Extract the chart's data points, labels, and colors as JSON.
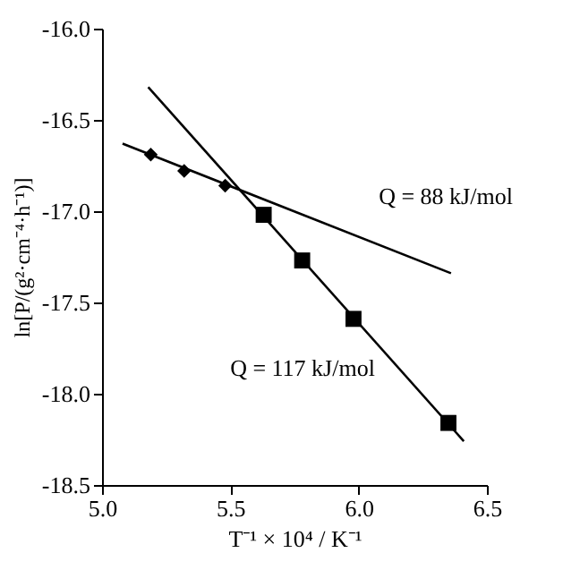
{
  "chart_data": {
    "type": "scatter",
    "xlabel": "T⁻¹ × 10⁴ / K⁻¹",
    "ylabel": "ln[P/(g²·cm⁻⁴·h⁻¹)]",
    "xlim": [
      5.0,
      6.5
    ],
    "ylim": [
      -18.5,
      -16.0
    ],
    "xticks": [
      {
        "value": 5.0,
        "label": "5.0"
      },
      5.5,
      {
        "value": 6.0,
        "label": "6.0"
      },
      6.5
    ],
    "yticks": [
      {
        "value": -18.5,
        "label": "-18.5"
      },
      {
        "value": -18.0,
        "label": "-18.0"
      },
      {
        "value": -17.5,
        "label": "-17.5"
      },
      {
        "value": -17.0,
        "label": "-17.0"
      },
      {
        "value": -16.5,
        "label": "-16.5"
      },
      {
        "value": -16.0,
        "label": "-16.0"
      }
    ],
    "series": [
      {
        "marker": "diamond",
        "color": "#000000",
        "x": [
          5.19,
          5.32,
          5.48
        ],
        "values": [
          -16.69,
          -16.78,
          -16.86
        ]
      },
      {
        "marker": "square",
        "color": "#000000",
        "x": [
          5.63,
          5.78,
          5.98,
          6.35
        ],
        "values": [
          -17.02,
          -17.27,
          -17.59,
          -18.16
        ]
      },
      {
        "type": "line",
        "line_style": "solid",
        "color": "#000000",
        "x": [
          5.08,
          6.36
        ],
        "values": [
          -16.63,
          -17.34
        ]
      },
      {
        "type": "line",
        "line_style": "solid",
        "color": "#000000",
        "x": [
          5.18,
          6.41
        ],
        "values": [
          -16.32,
          -18.26
        ]
      }
    ],
    "annotations": [
      "Q = 88 kJ/mol",
      "Q = 117 kJ/mol"
    ]
  }
}
